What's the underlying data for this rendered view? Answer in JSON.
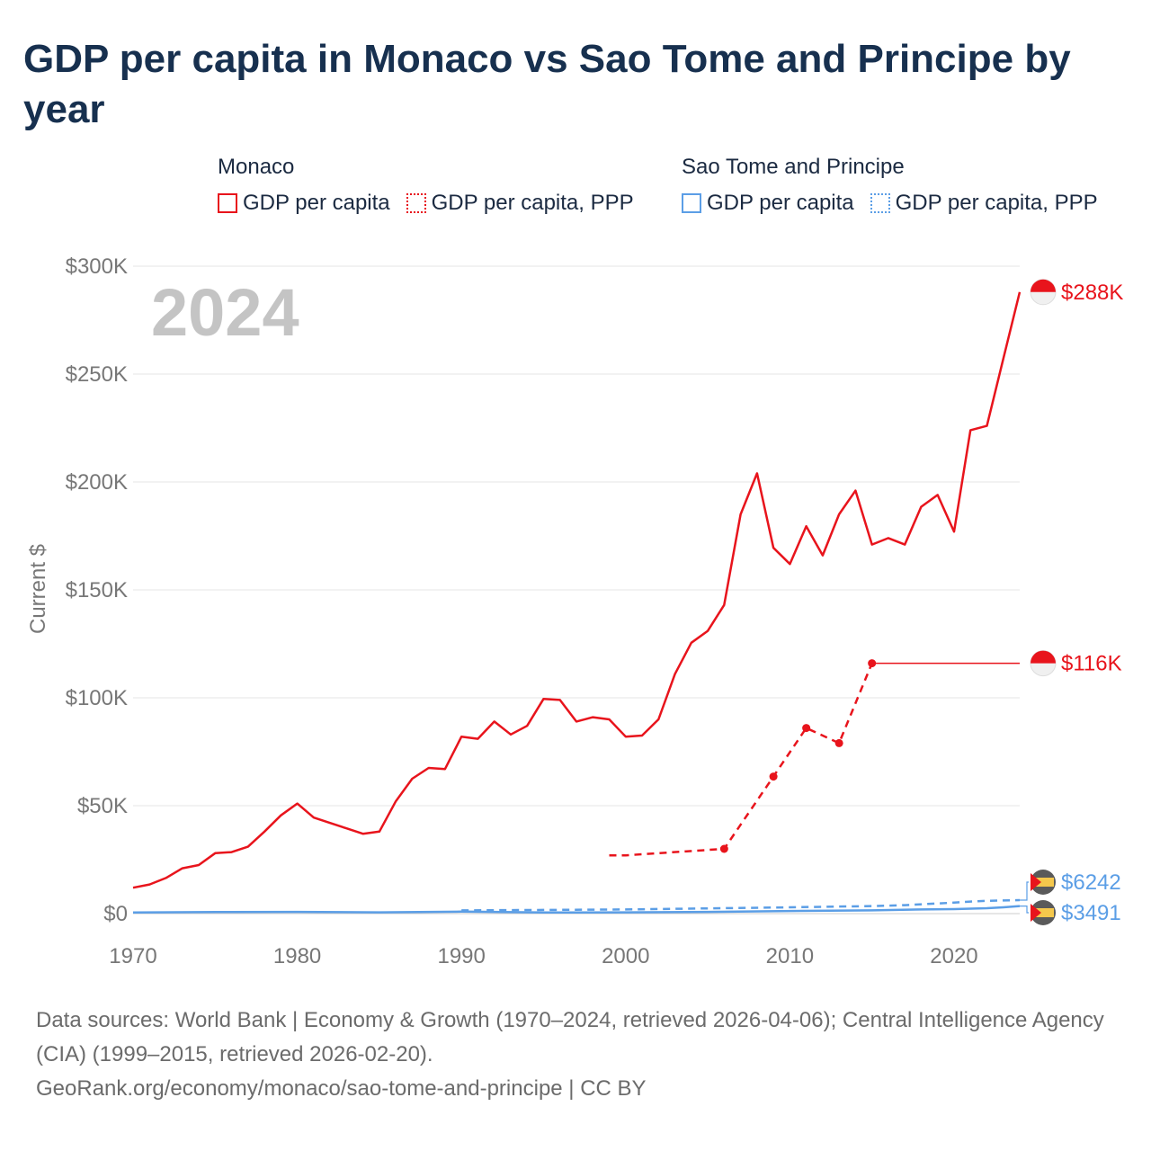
{
  "title": "GDP per capita in Monaco vs Sao Tome and Principe by year",
  "legend": {
    "groups": [
      {
        "name": "Monaco",
        "items": [
          {
            "label": "GDP per capita",
            "color": "#e8141c",
            "style": "solid"
          },
          {
            "label": "GDP per capita, PPP",
            "color": "#e8141c",
            "style": "dotted"
          }
        ]
      },
      {
        "name": "Sao Tome and Principe",
        "items": [
          {
            "label": "GDP per capita",
            "color": "#5b9ee6",
            "style": "solid"
          },
          {
            "label": "GDP per capita, PPP",
            "color": "#5b9ee6",
            "style": "dotted"
          }
        ]
      }
    ]
  },
  "year_watermark": "2024",
  "chart_data": {
    "type": "line",
    "ylabel": "Current $",
    "xlim": [
      1970,
      2024
    ],
    "ylim": [
      0,
      300000
    ],
    "x_ticks": [
      1970,
      1980,
      1990,
      2000,
      2010,
      2020
    ],
    "y_ticks": [
      {
        "value": 0,
        "label": "$0"
      },
      {
        "value": 50000,
        "label": "$50K"
      },
      {
        "value": 100000,
        "label": "$100K"
      },
      {
        "value": 150000,
        "label": "$150K"
      },
      {
        "value": 200000,
        "label": "$200K"
      },
      {
        "value": 250000,
        "label": "$250K"
      },
      {
        "value": 300000,
        "label": "$300K"
      }
    ],
    "grid": true,
    "series": [
      {
        "name": "Monaco GDP per capita",
        "color": "#e8141c",
        "dash": "solid",
        "end_label": "$288K",
        "x": [
          1970,
          1971,
          1972,
          1973,
          1974,
          1975,
          1976,
          1977,
          1978,
          1979,
          1980,
          1981,
          1982,
          1983,
          1984,
          1985,
          1986,
          1987,
          1988,
          1989,
          1990,
          1991,
          1992,
          1993,
          1994,
          1995,
          1996,
          1997,
          1998,
          1999,
          2000,
          2001,
          2002,
          2003,
          2004,
          2005,
          2006,
          2007,
          2008,
          2009,
          2010,
          2011,
          2012,
          2013,
          2014,
          2015,
          2016,
          2017,
          2018,
          2019,
          2020,
          2021,
          2022,
          2023,
          2024
        ],
        "y": [
          12000,
          13500,
          16500,
          21000,
          22500,
          28000,
          28500,
          31000,
          38000,
          45500,
          51000,
          44500,
          42000,
          39500,
          37000,
          38000,
          52000,
          62500,
          67500,
          67000,
          82000,
          81000,
          89000,
          83000,
          87000,
          99500,
          99000,
          89000,
          91000,
          90000,
          82000,
          82500,
          90000,
          111000,
          125500,
          131000,
          143000,
          185000,
          204000,
          169500,
          162000,
          179500,
          166000,
          185000,
          196000,
          171000,
          174000,
          171000,
          188500,
          194000,
          177000,
          224000,
          226000,
          257000,
          288000
        ]
      },
      {
        "name": "Monaco GDP per capita, PPP",
        "color": "#e8141c",
        "dash": "dashed",
        "end_label": "$116K",
        "x": [
          1999,
          2000,
          2006,
          2009,
          2011,
          2013,
          2015
        ],
        "y": [
          27000,
          27000,
          30000,
          63500,
          86000,
          79000,
          116000
        ],
        "markers": [
          2006,
          2009,
          2011,
          2013,
          2015
        ],
        "extend_to": 2024
      },
      {
        "name": "Sao Tome and Principe GDP per capita",
        "color": "#5b9ee6",
        "dash": "solid",
        "end_label": "$3491",
        "x": [
          1970,
          1975,
          1980,
          1985,
          1990,
          1995,
          2000,
          2005,
          2010,
          2015,
          2018,
          2020,
          2022,
          2023,
          2024
        ],
        "y": [
          500,
          700,
          800,
          600,
          900,
          500,
          600,
          800,
          1200,
          1500,
          1900,
          2100,
          2500,
          2900,
          3491
        ]
      },
      {
        "name": "Sao Tome and Principe GDP per capita, PPP",
        "color": "#5b9ee6",
        "dash": "dashed",
        "end_label": "$6242",
        "x": [
          1990,
          1995,
          2000,
          2005,
          2010,
          2015,
          2017,
          2019,
          2020,
          2021,
          2022,
          2023,
          2024
        ],
        "y": [
          1500,
          1700,
          1900,
          2400,
          2900,
          3500,
          3900,
          4700,
          5100,
          5600,
          5900,
          6100,
          6242
        ]
      }
    ]
  },
  "footer": {
    "line1": "Data sources: World Bank | Economy & Growth (1970–2024, retrieved 2026-04-06); Central Intelligence Agency (CIA) (1999–2015, retrieved 2026-02-20).",
    "line2": "GeoRank.org/economy/monaco/sao-tome-and-principe | CC BY"
  }
}
